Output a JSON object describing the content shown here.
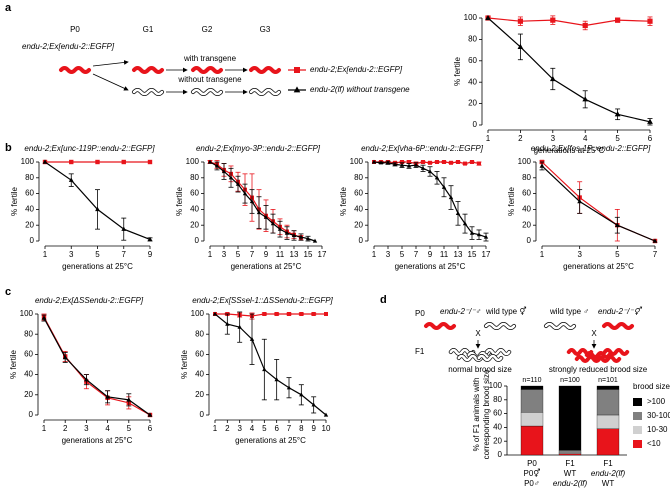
{
  "panel_labels": [
    "a",
    "b",
    "c",
    "d"
  ],
  "schematic_a": {
    "stages": [
      "P0",
      "G1",
      "G2",
      "G3"
    ],
    "genotype": "endu-2;Ex[endu-2::EGFP]",
    "with": "with transgene",
    "without": "without transgene"
  },
  "schematic_d": {
    "p0": "P0",
    "f1": "F1",
    "left_male": "endu-2⁻/⁻♂",
    "left_herm": "wild type ⚥",
    "right_male": "wild type ♂",
    "right_herm": "endu-2⁻/⁻⚥",
    "cross": "X",
    "left_result": "normal brood size",
    "right_result": "strongly reduced brood size"
  },
  "chart_data": [
    {
      "type": "line",
      "xlabel": "generations at 25°C",
      "ylabel": "% fertile",
      "x": [
        1,
        2,
        3,
        4,
        5,
        6
      ],
      "xlim": [
        1,
        6
      ],
      "xticks": [
        1,
        2,
        3,
        4,
        5,
        6
      ],
      "ylim": [
        0,
        100
      ],
      "yticks": [
        0,
        20,
        40,
        60,
        80,
        100
      ],
      "series": [
        {
          "name": "endu-2;Ex[endu-2::EGFP]",
          "color": "#e8141b",
          "marker": "square",
          "values": [
            100,
            97,
            98,
            93,
            98,
            97
          ],
          "errors": [
            0,
            4,
            4,
            4,
            2,
            4
          ]
        },
        {
          "name": "endu-2(lf) without transgene",
          "color": "#000000",
          "marker": "triangle",
          "values": [
            100,
            73,
            43,
            24,
            10,
            3
          ],
          "errors": [
            0,
            12,
            10,
            8,
            5,
            3
          ]
        }
      ]
    },
    {
      "type": "line",
      "title": "endu-2;Ex[unc-119P::endu-2::EGFP]",
      "xlabel": "generations at 25°C",
      "ylabel": "% fertile",
      "x": [
        1,
        3,
        5,
        7,
        9
      ],
      "xlim": [
        1,
        9
      ],
      "xticks": [
        1,
        3,
        5,
        7,
        9
      ],
      "ylim": [
        0,
        100
      ],
      "yticks": [
        0,
        20,
        40,
        60,
        80,
        100
      ],
      "series": [
        {
          "color": "#e8141b",
          "marker": "square",
          "values": [
            100,
            100,
            100,
            100,
            100
          ],
          "errors": [
            0,
            0,
            0,
            0,
            0
          ]
        },
        {
          "color": "#000000",
          "marker": "triangle",
          "values": [
            100,
            77,
            40,
            15,
            2
          ],
          "errors": [
            0,
            8,
            25,
            14,
            2
          ]
        }
      ]
    },
    {
      "type": "line",
      "title": "endu-2;Ex[myo-3P::endu-2::EGFP]",
      "xlabel": "generations at 25°C",
      "ylabel": "% fertile",
      "x": [
        1,
        2,
        3,
        4,
        5,
        6,
        7,
        8,
        9,
        10,
        11,
        12,
        13,
        14,
        15,
        16
      ],
      "xlim": [
        1,
        17
      ],
      "xticks": [
        1,
        3,
        5,
        7,
        9,
        11,
        13,
        15,
        17
      ],
      "ylim": [
        0,
        100
      ],
      "yticks": [
        0,
        20,
        40,
        60,
        80,
        100
      ],
      "series": [
        {
          "color": "#e8141b",
          "marker": "square",
          "values": [
            100,
            97,
            90,
            85,
            75,
            65,
            55,
            40,
            32,
            25,
            18,
            12,
            8,
            4,
            null,
            null
          ],
          "errors": [
            2,
            5,
            8,
            10,
            12,
            20,
            30,
            25,
            20,
            15,
            10,
            8,
            5,
            3,
            null,
            null
          ]
        },
        {
          "color": "#000000",
          "marker": "triangle",
          "values": [
            100,
            95,
            88,
            80,
            72,
            60,
            50,
            36,
            30,
            22,
            15,
            10,
            7,
            5,
            3,
            0
          ],
          "errors": [
            0,
            5,
            10,
            12,
            10,
            12,
            15,
            20,
            15,
            12,
            10,
            8,
            6,
            4,
            3,
            0
          ]
        }
      ]
    },
    {
      "type": "line",
      "title": "endu-2;Ex[vha-6P::endu-2::EGFP]",
      "xlabel": "generations at 25°C",
      "ylabel": "% fertile",
      "x": [
        1,
        2,
        3,
        4,
        5,
        6,
        7,
        8,
        9,
        10,
        11,
        12,
        13,
        14,
        15,
        16,
        17
      ],
      "xlim": [
        1,
        17
      ],
      "xticks": [
        1,
        3,
        5,
        7,
        9,
        11,
        13,
        15,
        17
      ],
      "ylim": [
        0,
        100
      ],
      "yticks": [
        0,
        20,
        40,
        60,
        80,
        100
      ],
      "series": [
        {
          "color": "#e8141b",
          "marker": "square",
          "values": [
            100,
            100,
            100,
            99,
            100,
            100,
            98,
            100,
            99,
            100,
            100,
            99,
            100,
            98,
            100,
            98,
            null
          ],
          "errors": [
            0,
            1,
            1,
            1,
            1,
            2,
            2,
            1,
            1,
            1,
            1,
            1,
            1,
            1,
            1,
            2,
            null
          ]
        },
        {
          "color": "#000000",
          "marker": "triangle",
          "values": [
            100,
            99,
            99,
            97,
            96,
            95,
            96,
            92,
            88,
            80,
            68,
            55,
            35,
            22,
            10,
            8,
            5
          ],
          "errors": [
            0,
            1,
            2,
            2,
            3,
            3,
            3,
            4,
            6,
            8,
            12,
            15,
            15,
            12,
            8,
            6,
            5
          ]
        }
      ]
    },
    {
      "type": "line",
      "title": "endu-2;Ex[fos-1P::endu-2::EGFP]",
      "xlabel": "generations at 25°C",
      "ylabel": "% fertile",
      "x": [
        1,
        3,
        5,
        7
      ],
      "xlim": [
        1,
        7
      ],
      "xticks": [
        1,
        3,
        5,
        7
      ],
      "ylim": [
        0,
        100
      ],
      "yticks": [
        0,
        20,
        40,
        60,
        80,
        100
      ],
      "series": [
        {
          "color": "#e8141b",
          "marker": "square",
          "values": [
            100,
            55,
            20,
            0
          ],
          "errors": [
            2,
            20,
            20,
            0
          ]
        },
        {
          "color": "#000000",
          "marker": "triangle",
          "values": [
            95,
            50,
            20,
            0
          ],
          "errors": [
            5,
            15,
            10,
            0
          ]
        }
      ]
    },
    {
      "type": "line",
      "title": "endu-2;Ex[ΔSSendu-2::EGFP]",
      "xlabel": "generations at 25°C",
      "ylabel": "% fertile",
      "x": [
        1,
        2,
        3,
        4,
        5,
        6
      ],
      "xlim": [
        1,
        6
      ],
      "xticks": [
        1,
        2,
        3,
        4,
        5,
        6
      ],
      "ylim": [
        0,
        100
      ],
      "yticks": [
        0,
        20,
        40,
        60,
        80,
        100
      ],
      "series": [
        {
          "color": "#e8141b",
          "marker": "square",
          "values": [
            97,
            58,
            33,
            17,
            12,
            0
          ],
          "errors": [
            3,
            5,
            7,
            7,
            6,
            0
          ]
        },
        {
          "color": "#000000",
          "marker": "triangle",
          "values": [
            96,
            57,
            35,
            18,
            15,
            0
          ],
          "errors": [
            3,
            5,
            5,
            6,
            6,
            0
          ]
        }
      ]
    },
    {
      "type": "line",
      "title": "endu-2;Ex[SSsel-1::ΔSSendu-2::EGFP]",
      "xlabel": "generations at 25°C",
      "ylabel": "% fertile",
      "x": [
        1,
        2,
        3,
        4,
        5,
        6,
        7,
        8,
        9,
        10
      ],
      "xlim": [
        1,
        10
      ],
      "xticks": [
        1,
        2,
        3,
        4,
        5,
        6,
        7,
        8,
        9,
        10
      ],
      "ylim": [
        0,
        100
      ],
      "yticks": [
        0,
        20,
        40,
        60,
        80,
        100
      ],
      "series": [
        {
          "color": "#e8141b",
          "marker": "square",
          "values": [
            100,
            100,
            99,
            98,
            100,
            100,
            100,
            100,
            100,
            100
          ],
          "errors": [
            0,
            1,
            2,
            3,
            1,
            1,
            1,
            1,
            1,
            0
          ]
        },
        {
          "color": "#000000",
          "marker": "triangle",
          "values": [
            100,
            90,
            87,
            75,
            45,
            35,
            27,
            20,
            10,
            0
          ],
          "errors": [
            0,
            10,
            15,
            25,
            30,
            20,
            10,
            10,
            8,
            0
          ]
        }
      ]
    },
    {
      "type": "stacked_bar",
      "ylabel": [
        "% of F1 animals with",
        "corresponding brood size"
      ],
      "categories": [
        "P0",
        "F1",
        "F1"
      ],
      "category_sublabels": [
        [
          "P0⚥",
          "P0♂"
        ],
        [
          "WT",
          "endu-2(lf)"
        ],
        [
          "endu-2(lf)",
          "WT"
        ]
      ],
      "n_labels": [
        "n=110",
        "n=100",
        "n=101"
      ],
      "legend_title": "brood size",
      "ylim": [
        0,
        100
      ],
      "yticks": [
        0,
        20,
        40,
        60,
        80,
        100
      ],
      "series": [
        {
          "name": "<10",
          "color": "#e8141b",
          "values": [
            42,
            2,
            38
          ]
        },
        {
          "name": "10-30",
          "color": "#d0d0d0",
          "values": [
            20,
            2,
            20
          ]
        },
        {
          "name": "30-100",
          "color": "#808080",
          "values": [
            33,
            3,
            37
          ]
        },
        {
          "name": ">100",
          "color": "#000000",
          "values": [
            5,
            93,
            5
          ]
        }
      ]
    }
  ]
}
